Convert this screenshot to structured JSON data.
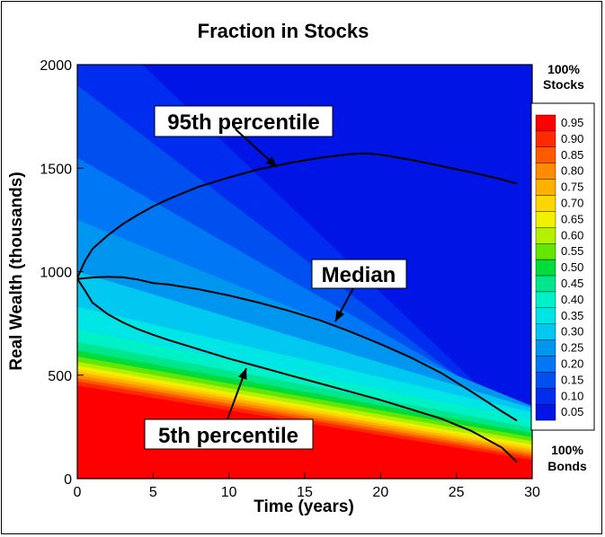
{
  "chart_data": {
    "type": "heatmap",
    "title": "Fraction in Stocks",
    "xlabel": "Time (years)",
    "ylabel": "Real Wealth (thousands)",
    "xlim": [
      0,
      30
    ],
    "ylim": [
      0,
      2000
    ],
    "x_ticks": [
      "0",
      "5",
      "10",
      "15",
      "20",
      "25",
      "30"
    ],
    "y_ticks": [
      "0",
      "500",
      "1000",
      "1500",
      "2000"
    ],
    "colorbar": {
      "levels": [
        0.95,
        0.9,
        0.85,
        0.8,
        0.75,
        0.7,
        0.65,
        0.6,
        0.55,
        0.5,
        0.45,
        0.4,
        0.35,
        0.3,
        0.25,
        0.2,
        0.15,
        0.1,
        0.05
      ],
      "labels": [
        "0.95",
        "0.90",
        "0.85",
        "0.80",
        "0.75",
        "0.70",
        "0.65",
        "0.60",
        "0.55",
        "0.50",
        "0.45",
        "0.40",
        "0.35",
        "0.30",
        "0.25",
        "0.20",
        "0.15",
        "0.10",
        "0.05"
      ],
      "colors": [
        "#ff0000",
        "#ff2a00",
        "#ff5a00",
        "#ff8c00",
        "#ffb000",
        "#ffd700",
        "#f0f000",
        "#b4f000",
        "#64e600",
        "#00dc3c",
        "#00e68c",
        "#00f0c8",
        "#00e6e6",
        "#00c8f0",
        "#0096f0",
        "#0078f5",
        "#0050f0",
        "#002cf0",
        "#0014e6"
      ],
      "top_label_1": "100%",
      "top_label_2": "Stocks",
      "bottom_label_1": "100%",
      "bottom_label_2": "Bonds"
    },
    "series": [
      {
        "name": "95th percentile",
        "x": [
          0,
          0.5,
          1,
          2,
          3,
          4,
          5,
          6,
          8,
          10,
          12,
          14,
          16,
          18,
          19,
          20,
          22,
          24,
          26,
          28,
          29
        ],
        "y": [
          970,
          1050,
          1110,
          1175,
          1230,
          1275,
          1315,
          1350,
          1410,
          1455,
          1495,
          1525,
          1550,
          1568,
          1572,
          1565,
          1540,
          1510,
          1480,
          1445,
          1425
        ]
      },
      {
        "name": "Median",
        "x": [
          0,
          1,
          2,
          3,
          4,
          5,
          6,
          8,
          10,
          12,
          14,
          16,
          18,
          20,
          22,
          24,
          26,
          28,
          29
        ],
        "y": [
          965,
          972,
          975,
          973,
          962,
          945,
          938,
          915,
          885,
          850,
          810,
          765,
          710,
          650,
          585,
          510,
          420,
          325,
          280
        ]
      },
      {
        "name": "5th percentile",
        "x": [
          0,
          0.5,
          1,
          2,
          3,
          4,
          5,
          6,
          8,
          10,
          12,
          14,
          16,
          18,
          20,
          22,
          24,
          26,
          28,
          29
        ],
        "y": [
          965,
          910,
          850,
          795,
          755,
          722,
          695,
          670,
          625,
          580,
          540,
          500,
          460,
          420,
          380,
          335,
          290,
          230,
          150,
          80
        ]
      }
    ],
    "annotations": [
      {
        "text": "95th percentile",
        "target_x": 13.5,
        "target_y": 1500
      },
      {
        "text": "Median",
        "target_x": 17,
        "target_y": 750
      },
      {
        "text": "5th percentile",
        "target_x": 11.3,
        "target_y": 530
      }
    ]
  }
}
